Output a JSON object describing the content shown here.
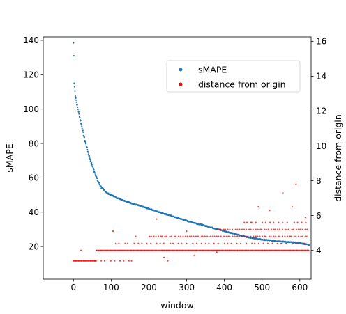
{
  "chart_data": {
    "type": "scatter",
    "title": "",
    "xlabel": "window",
    "ylabel": "sMAPE",
    "y2label": "distance from origin",
    "xlim": [
      -80,
      630
    ],
    "ylim": [
      1,
      142
    ],
    "y2lim": [
      2.35,
      16.25
    ],
    "xticks": [
      0,
      100,
      200,
      300,
      400,
      500,
      600
    ],
    "yticks": [
      20,
      40,
      60,
      80,
      100,
      120,
      140
    ],
    "y2ticks": [
      4,
      6,
      8,
      10,
      12,
      14,
      16
    ],
    "legend": {
      "position": "upper-right"
    },
    "series": [
      {
        "name": "sMAPE",
        "axis": "left",
        "color": "#1f77b4",
        "description_curve": [
          [
            0,
            138.5
          ],
          [
            1,
            131
          ],
          [
            2,
            115
          ],
          [
            3,
            113
          ],
          [
            5,
            108
          ],
          [
            8,
            104
          ],
          [
            12,
            100
          ],
          [
            16,
            96
          ],
          [
            20,
            92
          ],
          [
            25,
            87
          ],
          [
            30,
            82
          ],
          [
            35,
            78
          ],
          [
            40,
            74
          ],
          [
            45,
            70
          ],
          [
            50,
            67
          ],
          [
            55,
            64
          ],
          [
            60,
            61
          ],
          [
            65,
            58
          ],
          [
            70,
            56
          ],
          [
            75,
            54
          ],
          [
            80,
            53
          ],
          [
            90,
            51
          ],
          [
            100,
            50
          ],
          [
            120,
            48
          ],
          [
            150,
            45.5
          ],
          [
            200,
            42
          ],
          [
            250,
            38.5
          ],
          [
            300,
            35
          ],
          [
            350,
            32
          ],
          [
            400,
            29
          ],
          [
            450,
            26
          ],
          [
            500,
            24
          ],
          [
            550,
            23
          ],
          [
            600,
            22
          ],
          [
            625,
            21
          ]
        ]
      },
      {
        "name": "distance from origin",
        "axis": "right",
        "color": "#ff0000",
        "bands": [
          {
            "y": 3.4,
            "x_from": 0,
            "x_to": 60,
            "density": "dense"
          },
          {
            "y": 3.4,
            "x_from": 60,
            "x_to": 160,
            "density": "sparse"
          },
          {
            "y": 4.0,
            "x_from": 60,
            "x_to": 625,
            "density": "dense"
          },
          {
            "y": 4.4,
            "x_from": 110,
            "x_to": 625,
            "density": "sparse"
          },
          {
            "y": 4.8,
            "x_from": 200,
            "x_to": 625,
            "density": "medium"
          },
          {
            "y": 5.2,
            "x_from": 380,
            "x_to": 625,
            "density": "medium"
          },
          {
            "y": 5.6,
            "x_from": 450,
            "x_to": 625,
            "density": "sparse"
          }
        ],
        "outliers": [
          [
            20,
            4.0
          ],
          [
            105,
            5.1
          ],
          [
            165,
            4.8
          ],
          [
            220,
            5.8
          ],
          [
            240,
            3.6
          ],
          [
            250,
            3.4
          ],
          [
            300,
            5.1
          ],
          [
            320,
            3.7
          ],
          [
            380,
            3.9
          ],
          [
            470,
            5.6
          ],
          [
            490,
            6.5
          ],
          [
            520,
            6.3
          ],
          [
            555,
            7.3
          ],
          [
            580,
            6.5
          ],
          [
            590,
            7.8
          ],
          [
            615,
            5.9
          ]
        ]
      }
    ]
  }
}
